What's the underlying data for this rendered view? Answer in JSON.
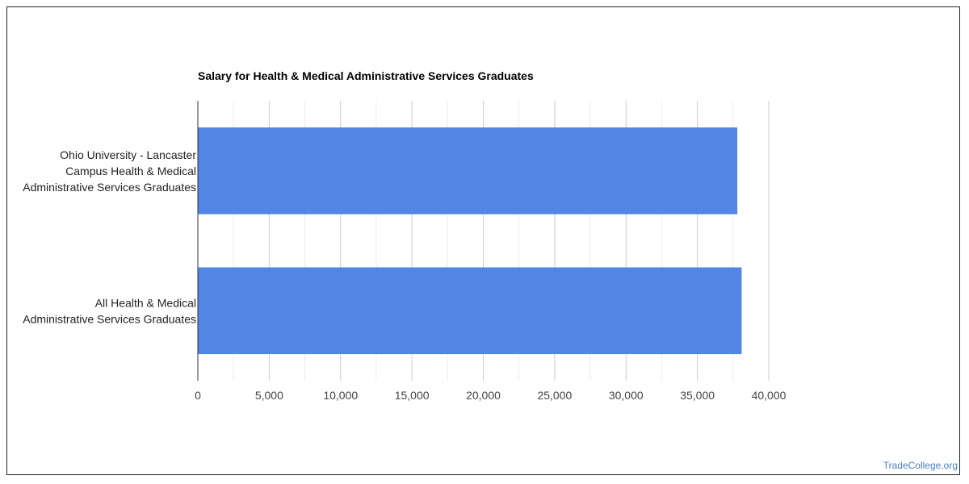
{
  "chart_data": {
    "type": "bar",
    "orientation": "horizontal",
    "title": "Salary for Health & Medical Administrative Services Graduates",
    "categories": [
      [
        "Ohio University - Lancaster",
        "Campus Health & Medical",
        "Administrative Services Graduates"
      ],
      [
        "All Health & Medical",
        "Administrative Services Graduates"
      ]
    ],
    "values": [
      37800,
      38100
    ],
    "xlim": [
      0,
      40000
    ],
    "xticks": [
      "0",
      "5,000",
      "10,000",
      "15,000",
      "20,000",
      "25,000",
      "30,000",
      "35,000",
      "40,000"
    ],
    "xtick_values": [
      0,
      5000,
      10000,
      15000,
      20000,
      25000,
      30000,
      35000,
      40000
    ],
    "xlabel": "",
    "ylabel": "",
    "grid": true,
    "legend": "none",
    "bar_color": "#5386e4"
  },
  "watermark": "TradeCollege.org"
}
